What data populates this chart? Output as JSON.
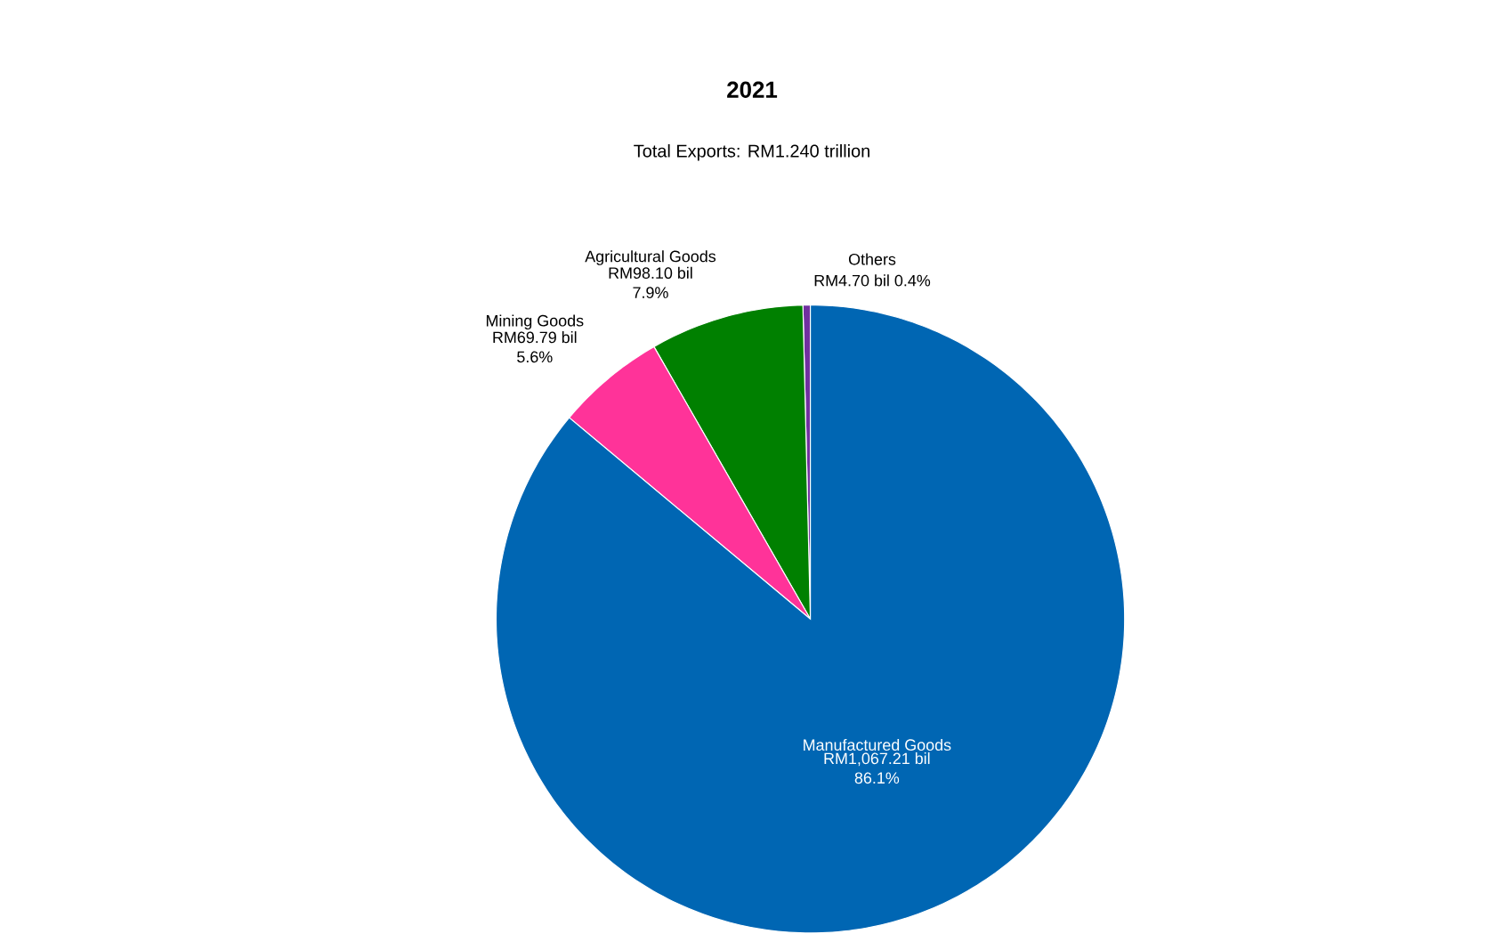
{
  "chart_data": {
    "type": "pie",
    "title": "2021",
    "subtitle": "Total Exports: RM1.240 trillion",
    "categories": [
      "Others",
      "Agricultural Goods",
      "Mining Goods",
      "Manufactured Goods"
    ],
    "values": [
      4.7,
      98.1,
      69.79,
      1067.21
    ],
    "colors": [
      "#7030a0",
      "#008000",
      "#ff3399",
      "#0066b3"
    ],
    "value_labels": [
      "RM4.70 bil 0.4%",
      "RM98.10 bil 7.9%",
      "RM69.79 bil 5.6%",
      "RM1,067.21 bil 86.1%"
    ]
  }
}
